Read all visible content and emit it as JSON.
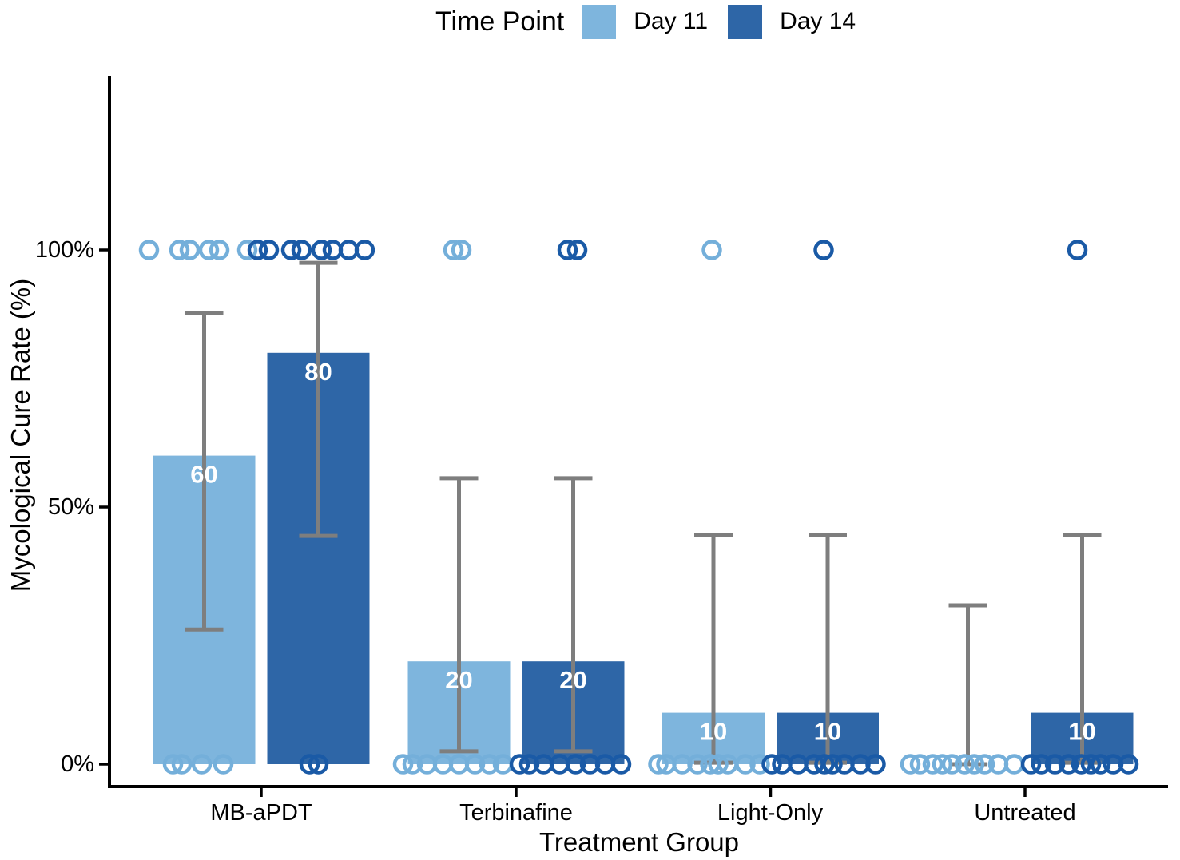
{
  "legend": {
    "title": "Time Point",
    "items": [
      {
        "label": "Day 11",
        "color": "#7EB5DD"
      },
      {
        "label": "Day 14",
        "color": "#2E66A7"
      }
    ]
  },
  "chart_data": {
    "type": "bar",
    "title": "",
    "xlabel": "Treatment Group",
    "ylabel": "Mycological Cure Rate (%)",
    "categories": [
      "MB-aPDT",
      "Terbinafine",
      "Light-Only",
      "Untreated"
    ],
    "y_ticks": [
      {
        "value": 0,
        "label": "0%"
      },
      {
        "value": 50,
        "label": "50%"
      },
      {
        "value": 100,
        "label": "100%"
      }
    ],
    "ylim": [
      0,
      100
    ],
    "grid": false,
    "legend_position": "top",
    "error_bars": "95% CI",
    "colors": {
      "day11": "#7EB5DD",
      "day14": "#2E66A7",
      "error": "#7E7E7E",
      "axis": "#000000",
      "bar_label": "#FFFFFF"
    },
    "series": [
      {
        "name": "Day 11",
        "color": "#7EB5DD",
        "point_color": "#74AFDA",
        "values": [
          60,
          20,
          10,
          0
        ],
        "bar_labels": [
          "60",
          "20",
          "10",
          ""
        ],
        "ci_low": [
          26.2,
          2.5,
          0.3,
          0
        ],
        "ci_high": [
          87.8,
          55.6,
          44.5,
          30.9
        ],
        "points_at_100": [
          [
            -69,
            -31,
            -18,
            6,
            19,
            54
          ],
          [
            -7,
            3
          ],
          [
            -2
          ],
          []
        ],
        "points_at_0": [
          [
            -39,
            -28,
            -3,
            24
          ],
          [
            -70,
            -58,
            -40,
            -20,
            0,
            20,
            38,
            55
          ],
          [
            -69,
            -59,
            -39,
            -20,
            -4,
            6,
            18,
            40,
            58
          ],
          [
            -72,
            -60,
            -44,
            -32,
            -20,
            -4,
            8,
            21,
            38,
            58
          ]
        ]
      },
      {
        "name": "Day 14",
        "color": "#2E66A7",
        "point_color": "#1A5AA6",
        "values": [
          80,
          20,
          10,
          10
        ],
        "bar_labels": [
          "80",
          "20",
          "10",
          "10"
        ],
        "ci_low": [
          44.4,
          2.5,
          0.3,
          0.3
        ],
        "ci_high": [
          97.5,
          55.6,
          44.5,
          44.5
        ],
        "points_at_100": [
          [
            -76,
            -62,
            -34,
            -21,
            4,
            18,
            38,
            58
          ],
          [
            -7,
            5
          ],
          [
            -5
          ],
          [
            -6
          ]
        ],
        "points_at_0": [
          [
            -11,
            0
          ],
          [
            -67,
            -55,
            -37,
            -17,
            3,
            21,
            40,
            60
          ],
          [
            -70,
            -57,
            -37,
            -17,
            -4,
            6,
            21,
            41,
            60
          ],
          [
            -64,
            -51,
            -34,
            -17,
            -1,
            11,
            23,
            39,
            58
          ]
        ]
      }
    ]
  }
}
